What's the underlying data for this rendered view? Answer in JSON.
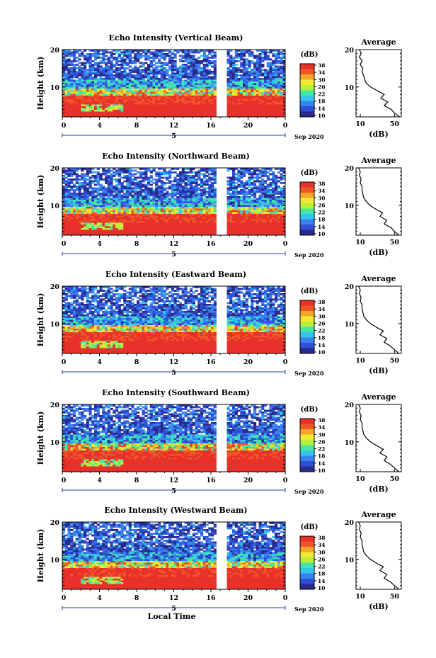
{
  "chart_data": [
    {
      "type": "heatmap",
      "title": "Echo Intensity (Vertical Beam)",
      "ylabel": "Height (km)",
      "ylim": [
        2,
        20
      ],
      "y_ticks": [
        "20",
        "10"
      ],
      "xlim": [
        0,
        24
      ],
      "x_ticks": [
        "0",
        "4",
        "8",
        "12",
        "16",
        "20",
        "0"
      ],
      "date_marker": "5",
      "date_label": "Sep 2020",
      "data_gap_hours": [
        16.5,
        17.6
      ],
      "colorbar": {
        "unit": "(dB)",
        "ticks": [
          "38",
          "34",
          "30",
          "26",
          "22",
          "18",
          "14",
          "10"
        ],
        "range": [
          10,
          38
        ]
      },
      "average_profile": {
        "title": "Average",
        "xlabel": "(dB)",
        "x_ticks": [
          "10",
          "50"
        ],
        "xlim": [
          5,
          58
        ],
        "y_ticks": [
          "20",
          "10"
        ],
        "heights": [
          20,
          19,
          18,
          17,
          16,
          15,
          14,
          13,
          12,
          11,
          10,
          9,
          8,
          7,
          6,
          5,
          4,
          3,
          2
        ],
        "values": [
          9,
          11,
          9,
          12,
          10,
          13,
          12,
          14,
          15,
          17,
          22,
          30,
          38,
          34,
          42,
          38,
          46,
          50,
          56
        ]
      }
    },
    {
      "type": "heatmap",
      "title": "Echo Intensity (Northward Beam)",
      "ylabel": "Height (km)",
      "ylim": [
        2,
        20
      ],
      "y_ticks": [
        "20",
        "10"
      ],
      "xlim": [
        0,
        24
      ],
      "x_ticks": [
        "0",
        "4",
        "8",
        "12",
        "16",
        "20",
        "0"
      ],
      "date_marker": "5",
      "date_label": "Sep 2020",
      "data_gap_hours": [
        16.5,
        17.6
      ],
      "colorbar": {
        "unit": "(dB)",
        "ticks": [
          "38",
          "34",
          "30",
          "26",
          "22",
          "18",
          "14",
          "10"
        ],
        "range": [
          10,
          38
        ]
      },
      "average_profile": {
        "title": "Average",
        "xlabel": "(dB)",
        "x_ticks": [
          "10",
          "50"
        ],
        "xlim": [
          5,
          58
        ],
        "y_ticks": [
          "20",
          "10"
        ],
        "heights": [
          20,
          19,
          18,
          17,
          16,
          15,
          14,
          13,
          12,
          11,
          10,
          9,
          8,
          7,
          6,
          5,
          4,
          3,
          2
        ],
        "values": [
          8,
          10,
          9,
          11,
          10,
          12,
          12,
          13,
          14,
          17,
          21,
          28,
          36,
          33,
          41,
          38,
          46,
          50,
          55
        ]
      }
    },
    {
      "type": "heatmap",
      "title": "Echo Intensity (Eastward Beam)",
      "ylabel": "Height (km)",
      "ylim": [
        2,
        20
      ],
      "y_ticks": [
        "20",
        "10"
      ],
      "xlim": [
        0,
        24
      ],
      "x_ticks": [
        "0",
        "4",
        "8",
        "12",
        "16",
        "20",
        "0"
      ],
      "date_marker": "5",
      "date_label": "Sep 2020",
      "data_gap_hours": [
        16.5,
        17.6
      ],
      "colorbar": {
        "unit": "(dB)",
        "ticks": [
          "38",
          "34",
          "30",
          "26",
          "22",
          "18",
          "14",
          "10"
        ],
        "range": [
          10,
          38
        ]
      },
      "average_profile": {
        "title": "Average",
        "xlabel": "(dB)",
        "x_ticks": [
          "10",
          "50"
        ],
        "xlim": [
          5,
          58
        ],
        "y_ticks": [
          "20",
          "10"
        ],
        "heights": [
          20,
          19,
          18,
          17,
          16,
          15,
          14,
          13,
          12,
          11,
          10,
          9,
          8,
          7,
          6,
          5,
          4,
          3,
          2
        ],
        "values": [
          8,
          10,
          9,
          11,
          10,
          12,
          12,
          13,
          14,
          17,
          22,
          29,
          37,
          33,
          41,
          38,
          45,
          50,
          55
        ]
      }
    },
    {
      "type": "heatmap",
      "title": "Echo Intensity (Southward Beam)",
      "ylabel": "Height (km)",
      "ylim": [
        2,
        20
      ],
      "y_ticks": [
        "20",
        "10"
      ],
      "xlim": [
        0,
        24
      ],
      "x_ticks": [
        "0",
        "4",
        "8",
        "12",
        "16",
        "20",
        "0"
      ],
      "date_marker": "5",
      "date_label": "Sep 2020",
      "data_gap_hours": [
        16.5,
        17.6
      ],
      "colorbar": {
        "unit": "(dB)",
        "ticks": [
          "38",
          "34",
          "30",
          "26",
          "22",
          "18",
          "14",
          "10"
        ],
        "range": [
          10,
          38
        ]
      },
      "average_profile": {
        "title": "Average",
        "xlabel": "(dB)",
        "x_ticks": [
          "10",
          "50"
        ],
        "xlim": [
          5,
          58
        ],
        "y_ticks": [
          "20",
          "10"
        ],
        "heights": [
          20,
          19,
          18,
          17,
          16,
          15,
          14,
          13,
          12,
          11,
          10,
          9,
          8,
          7,
          6,
          5,
          4,
          3,
          2
        ],
        "values": [
          8,
          10,
          9,
          11,
          10,
          12,
          12,
          13,
          14,
          17,
          22,
          29,
          37,
          33,
          41,
          38,
          45,
          50,
          55
        ]
      }
    },
    {
      "type": "heatmap",
      "title": "Echo Intensity (Westward Beam)",
      "ylabel": "Height (km)",
      "xlabel": "Local Time",
      "ylim": [
        2,
        20
      ],
      "y_ticks": [
        "20",
        "10"
      ],
      "xlim": [
        0,
        24
      ],
      "x_ticks": [
        "0",
        "4",
        "8",
        "12",
        "16",
        "20",
        "0"
      ],
      "date_marker": "5",
      "date_label": "Sep 2020",
      "data_gap_hours": [
        16.5,
        17.6
      ],
      "colorbar": {
        "unit": "(dB)",
        "ticks": [
          "38",
          "34",
          "30",
          "26",
          "22",
          "18",
          "14",
          "10"
        ],
        "range": [
          10,
          38
        ]
      },
      "average_profile": {
        "title": "Average",
        "xlabel": "(dB)",
        "x_ticks": [
          "10",
          "50"
        ],
        "xlim": [
          5,
          58
        ],
        "y_ticks": [
          "20",
          "10"
        ],
        "heights": [
          20,
          19,
          18,
          17,
          16,
          15,
          14,
          13,
          12,
          11,
          10,
          9,
          8,
          7,
          6,
          5,
          4,
          3,
          2
        ],
        "values": [
          8,
          10,
          9,
          11,
          10,
          12,
          12,
          13,
          14,
          17,
          22,
          29,
          37,
          33,
          41,
          38,
          45,
          50,
          55
        ]
      }
    }
  ],
  "colors": {
    "colormap": [
      "#2a2a8c",
      "#2f4fd6",
      "#3a82f0",
      "#34c6e8",
      "#46e6a8",
      "#b8ef3c",
      "#f3e935",
      "#f6a72a",
      "#f0552a",
      "#e8312a"
    ]
  }
}
